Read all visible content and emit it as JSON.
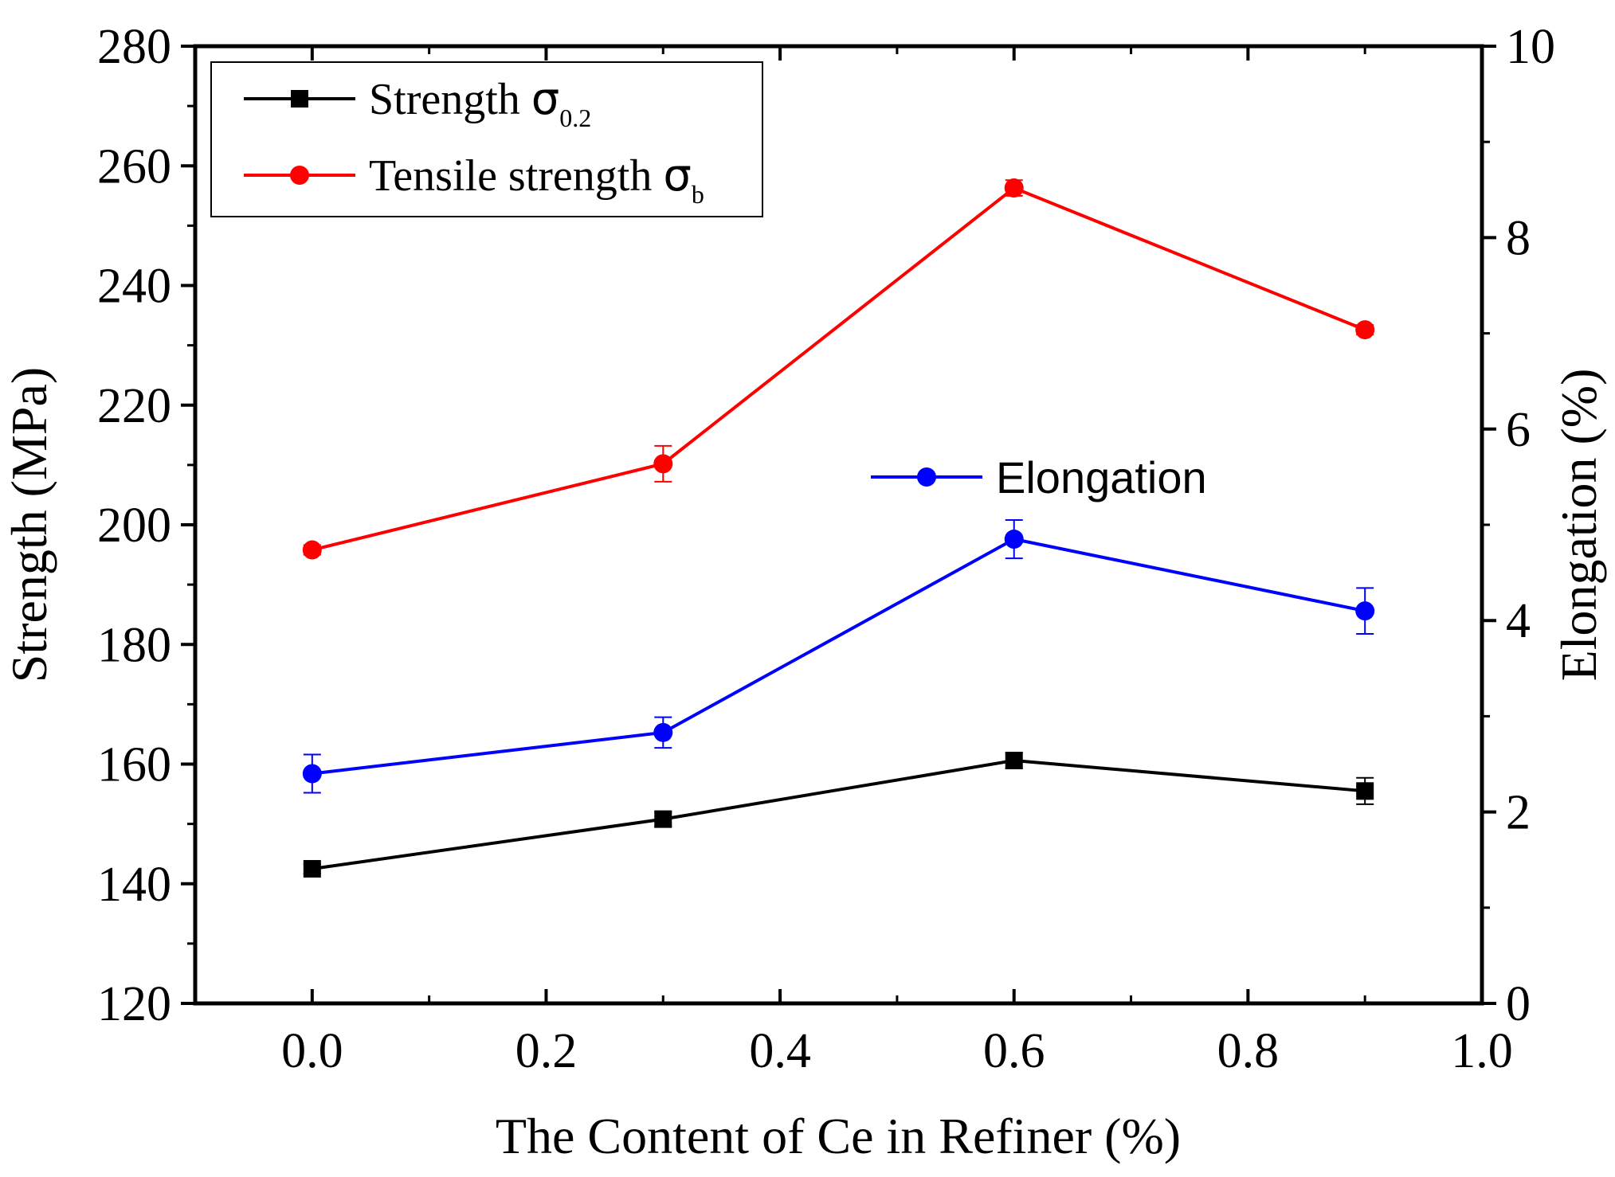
{
  "chart_data": {
    "type": "line",
    "x": [
      0.0,
      0.3,
      0.6,
      0.9
    ],
    "xlabel": "The Content of Ce in Refiner (%)",
    "ylabel": "Strength (MPa)",
    "y2label": "Elongation (%)",
    "xlim": [
      -0.1,
      1.0
    ],
    "ylim": [
      120,
      280
    ],
    "y2lim": [
      0,
      10
    ],
    "xticks": [
      "0.0",
      "0.2",
      "0.4",
      "0.6",
      "0.8",
      "1.0"
    ],
    "yticks": [
      "120",
      "140",
      "160",
      "180",
      "200",
      "220",
      "240",
      "260",
      "280"
    ],
    "y2ticks": [
      "0",
      "2",
      "4",
      "6",
      "8",
      "10"
    ],
    "series": [
      {
        "name": "Strength σ0.2",
        "label_main": "Strength ",
        "label_symbol": "σ",
        "label_sub": "0.2",
        "axis": "left",
        "marker": "square",
        "color": "#000000",
        "values": [
          142.5,
          150.8,
          160.6,
          155.5
        ],
        "errors": [
          0.8,
          1.2,
          1.3,
          2.2
        ]
      },
      {
        "name": "Tensile strength σb",
        "label_main": "Tensile strength ",
        "label_symbol": "σ",
        "label_sub": "b",
        "axis": "left",
        "marker": "circle",
        "color": "#ff0000",
        "values": [
          195.8,
          210.2,
          256.3,
          232.6
        ],
        "errors": [
          0.8,
          3.0,
          1.3,
          0.8
        ]
      },
      {
        "name": "Elongation",
        "label_main": "Elongation",
        "axis": "right",
        "marker": "circle",
        "color": "#0000ff",
        "values": [
          2.4,
          2.83,
          4.85,
          4.1
        ],
        "errors": [
          0.2,
          0.16,
          0.2,
          0.24
        ]
      }
    ]
  }
}
